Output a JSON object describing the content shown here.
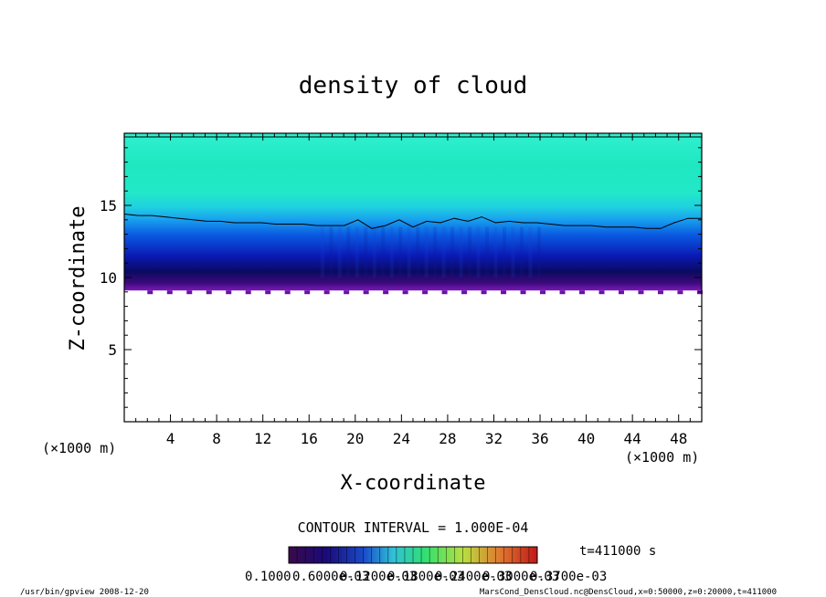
{
  "chart_data": {
    "type": "heatmap",
    "title": "density of cloud",
    "xlabel": "X-coordinate",
    "ylabel": "Z-coordinate",
    "x_unit": "(×1000 m)",
    "y_unit": "(×1000 m)",
    "xlim": [
      0,
      50
    ],
    "ylim": [
      0,
      20
    ],
    "x_ticks": [
      4,
      8,
      12,
      16,
      20,
      24,
      28,
      32,
      36,
      40,
      44,
      48
    ],
    "y_ticks": [
      5,
      10,
      15
    ],
    "cloud_bottom": 9.1,
    "cloud_top": 20,
    "contour_line_z": [
      14.4,
      14.3,
      14.3,
      14.2,
      14.1,
      14.0,
      13.9,
      13.9,
      13.8,
      13.8,
      13.8,
      13.7,
      13.7,
      13.7,
      13.6,
      13.6,
      13.6,
      14.0,
      13.4,
      13.6,
      14.0,
      13.5,
      13.9,
      13.8,
      14.1,
      13.9,
      14.2,
      13.8,
      13.9,
      13.8,
      13.8,
      13.7,
      13.6,
      13.6,
      13.6,
      13.5,
      13.5,
      13.5,
      13.4,
      13.4,
      13.8,
      14.1,
      14.1
    ],
    "contour_interval": "CONTOUR INTERVAL = 1.000E-04",
    "time": "t=411000 s",
    "colorbar_labels": [
      "0.1000",
      "0.6000e-03",
      "0.1200e-03",
      "0.1800e-03",
      "0.2400e-03",
      "0.3000e-03",
      "0.3700e-03"
    ],
    "colorbar_colors": [
      "#2a0a3a",
      "#1a0a6a",
      "#0a1a9a",
      "#0a3acc",
      "#1a6aee",
      "#3aaaf0",
      "#30d8c8",
      "#30e890",
      "#50f060",
      "#90f040",
      "#c8e040",
      "#f0c040",
      "#f08030",
      "#e04030",
      "#c01818"
    ]
  },
  "footer": {
    "left": "/usr/bin/gpview   2008-12-20",
    "right": "MarsCond_DensCloud.nc@DensCloud,x=0:50000,z=0:20000,t=411000"
  }
}
